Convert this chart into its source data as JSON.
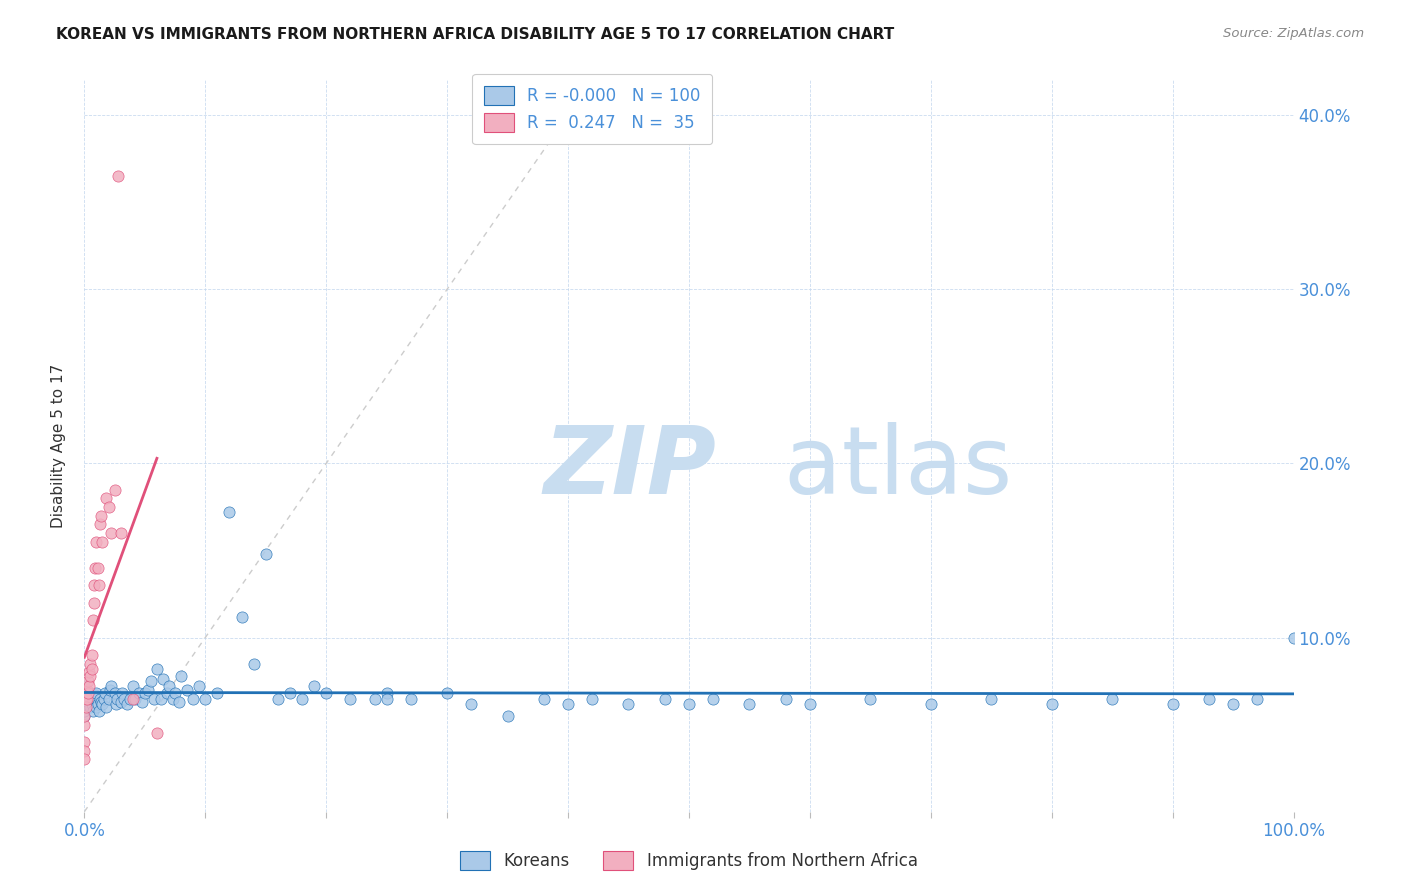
{
  "title": "KOREAN VS IMMIGRANTS FROM NORTHERN AFRICA DISABILITY AGE 5 TO 17 CORRELATION CHART",
  "source": "Source: ZipAtlas.com",
  "ylabel": "Disability Age 5 to 17",
  "xlim": [
    0.0,
    1.0
  ],
  "ylim": [
    0.0,
    0.42
  ],
  "legend_label1": "Koreans",
  "legend_label2": "Immigrants from Northern Africa",
  "legend_R1": "R = -0.000",
  "legend_N1": "N = 100",
  "legend_R2": "R =  0.247",
  "legend_N2": "N =  35",
  "color_korean": "#aac9e8",
  "color_immigrant": "#f2afc0",
  "trendline_color_korean": "#2171b5",
  "trendline_color_immigrant": "#e0507a",
  "diagonal_color": "#cccccc",
  "watermark_color": "#c8ddf0",
  "korean_x": [
    0.0,
    0.0,
    0.0,
    0.0,
    0.0,
    0.0,
    0.0,
    0.0,
    0.0,
    0.002,
    0.003,
    0.004,
    0.005,
    0.005,
    0.006,
    0.007,
    0.007,
    0.008,
    0.009,
    0.01,
    0.01,
    0.01,
    0.011,
    0.012,
    0.013,
    0.014,
    0.015,
    0.016,
    0.017,
    0.018,
    0.02,
    0.021,
    0.022,
    0.025,
    0.026,
    0.027,
    0.03,
    0.031,
    0.033,
    0.035,
    0.038,
    0.04,
    0.042,
    0.045,
    0.048,
    0.05,
    0.053,
    0.055,
    0.058,
    0.06,
    0.063,
    0.065,
    0.068,
    0.07,
    0.073,
    0.075,
    0.078,
    0.08,
    0.085,
    0.09,
    0.095,
    0.1,
    0.11,
    0.12,
    0.13,
    0.14,
    0.15,
    0.16,
    0.17,
    0.18,
    0.19,
    0.2,
    0.22,
    0.24,
    0.25,
    0.27,
    0.3,
    0.32,
    0.35,
    0.38,
    0.4,
    0.42,
    0.45,
    0.48,
    0.5,
    0.52,
    0.55,
    0.58,
    0.6,
    0.65,
    0.7,
    0.75,
    0.8,
    0.85,
    0.9,
    0.93,
    0.95,
    0.97,
    1.0,
    0.25
  ],
  "korean_y": [
    0.065,
    0.07,
    0.072,
    0.068,
    0.055,
    0.06,
    0.064,
    0.058,
    0.062,
    0.065,
    0.063,
    0.066,
    0.06,
    0.068,
    0.062,
    0.065,
    0.058,
    0.063,
    0.067,
    0.065,
    0.06,
    0.068,
    0.062,
    0.058,
    0.065,
    0.063,
    0.062,
    0.065,
    0.068,
    0.06,
    0.065,
    0.07,
    0.072,
    0.068,
    0.062,
    0.065,
    0.063,
    0.068,
    0.065,
    0.062,
    0.065,
    0.072,
    0.065,
    0.068,
    0.063,
    0.068,
    0.07,
    0.075,
    0.065,
    0.082,
    0.065,
    0.076,
    0.068,
    0.072,
    0.065,
    0.068,
    0.063,
    0.078,
    0.07,
    0.065,
    0.072,
    0.065,
    0.068,
    0.172,
    0.112,
    0.085,
    0.148,
    0.065,
    0.068,
    0.065,
    0.072,
    0.068,
    0.065,
    0.065,
    0.068,
    0.065,
    0.068,
    0.062,
    0.055,
    0.065,
    0.062,
    0.065,
    0.062,
    0.065,
    0.062,
    0.065,
    0.062,
    0.065,
    0.062,
    0.065,
    0.062,
    0.065,
    0.062,
    0.065,
    0.062,
    0.065,
    0.062,
    0.065,
    0.1,
    0.065
  ],
  "immigrant_x": [
    0.0,
    0.0,
    0.0,
    0.0,
    0.0,
    0.001,
    0.001,
    0.002,
    0.002,
    0.003,
    0.003,
    0.004,
    0.004,
    0.005,
    0.005,
    0.006,
    0.006,
    0.007,
    0.008,
    0.008,
    0.009,
    0.01,
    0.011,
    0.012,
    0.013,
    0.014,
    0.015,
    0.018,
    0.02,
    0.022,
    0.025,
    0.028,
    0.03,
    0.04,
    0.06
  ],
  "immigrant_y": [
    0.05,
    0.055,
    0.04,
    0.035,
    0.03,
    0.065,
    0.06,
    0.07,
    0.065,
    0.075,
    0.068,
    0.08,
    0.072,
    0.085,
    0.078,
    0.09,
    0.082,
    0.11,
    0.12,
    0.13,
    0.14,
    0.155,
    0.14,
    0.13,
    0.165,
    0.17,
    0.155,
    0.18,
    0.175,
    0.16,
    0.185,
    0.365,
    0.16,
    0.065,
    0.045
  ]
}
